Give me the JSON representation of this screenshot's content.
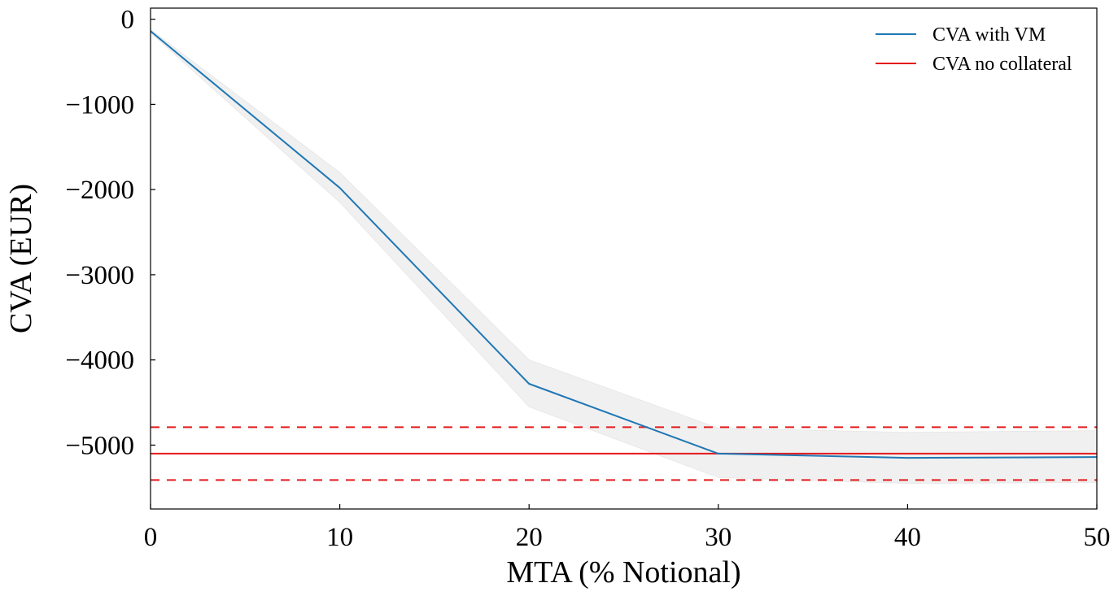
{
  "chart_data": {
    "type": "line",
    "title": "",
    "xlabel": "MTA (% Notional)",
    "ylabel": "CVA (EUR)",
    "xlim": [
      0,
      50
    ],
    "ylim": [
      -5750,
      130
    ],
    "x_ticks": [
      0,
      10,
      20,
      30,
      40,
      50
    ],
    "y_ticks": [
      0,
      -1000,
      -2000,
      -3000,
      -4000,
      -5000
    ],
    "x_tick_labels": [
      "0",
      "10",
      "20",
      "30",
      "40",
      "50"
    ],
    "y_tick_labels": [
      "0",
      "−1000",
      "−2000",
      "−3000",
      "−4000",
      "−5000"
    ],
    "grid": false,
    "legend_position": "top-right",
    "series": [
      {
        "name": "CVA with VM",
        "color": "#1f77b4",
        "style": "solid",
        "x": [
          0,
          10,
          20,
          30,
          40,
          50
        ],
        "y": [
          -140,
          -1980,
          -4280,
          -5100,
          -5150,
          -5140
        ],
        "band_upper": [
          -120,
          -1800,
          -4000,
          -4800,
          -4850,
          -4830
        ],
        "band_lower": [
          -160,
          -2150,
          -4550,
          -5380,
          -5450,
          -5440
        ],
        "band_color": "#f0f0f0"
      },
      {
        "name": "CVA no collateral",
        "color": "#e31a1c",
        "style": "solid",
        "x": [
          0,
          50
        ],
        "y": [
          -5100,
          -5100
        ]
      }
    ],
    "reference_lines": [
      {
        "y": -4790,
        "color": "#e31a1c",
        "style": "dashed"
      },
      {
        "y": -5410,
        "color": "#e31a1c",
        "style": "dashed"
      }
    ]
  }
}
